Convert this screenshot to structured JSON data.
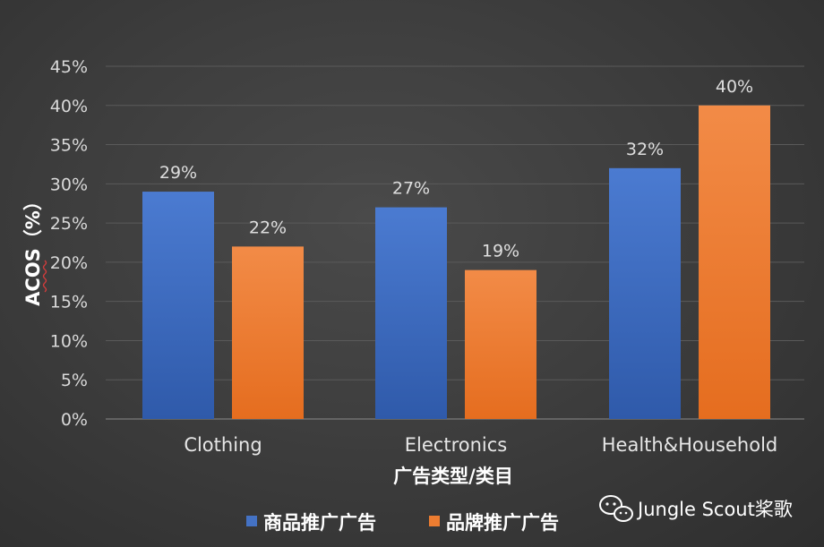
{
  "chart_data": {
    "type": "bar",
    "categories": [
      "Clothing",
      "Electronics",
      "Health&Household"
    ],
    "series": [
      {
        "name": "商品推广广告",
        "values": [
          29,
          27,
          32
        ],
        "labels": [
          "29%",
          "27%",
          "32%"
        ]
      },
      {
        "name": "品牌推广广告",
        "values": [
          22,
          19,
          40
        ],
        "labels": [
          "22%",
          "19%",
          "40%"
        ]
      }
    ],
    "xlabel": "广告类型/类目",
    "ylabel": "ACOS（%）",
    "ylim": [
      0,
      45
    ],
    "yticks": [
      "0%",
      "5%",
      "10%",
      "15%",
      "20%",
      "25%",
      "30%",
      "35%",
      "40%",
      "45%"
    ],
    "grid": true,
    "legend_position": "bottom",
    "colors": {
      "series_1": "#4472c4",
      "series_2": "#ed7d31",
      "background": "#3c3c3c",
      "grid": "#5a5a5a",
      "text": "#d9d9d9"
    }
  },
  "watermark": {
    "text": "Jungle Scout桨歌",
    "icon": "wechat-icon"
  }
}
